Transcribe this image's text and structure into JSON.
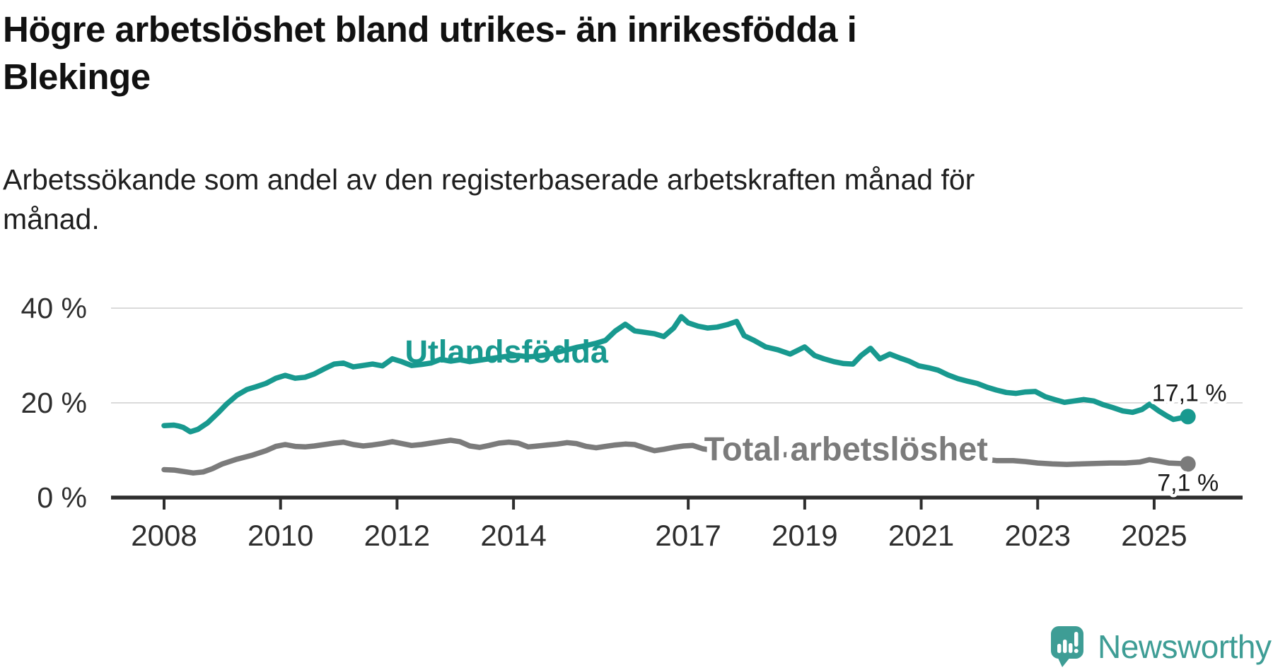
{
  "title": {
    "lines": [
      "Högre arbetslöshet bland utrikes- än inrikesfödda i",
      "Blekinge"
    ]
  },
  "subtitle": {
    "lines": [
      "Arbetssökande som andel av den registerbaserade arbetskraften månad för",
      "månad."
    ]
  },
  "logo": {
    "text": "Newsworthy",
    "icon": "newsworthy-chart-bubble-icon",
    "color": "#3e9d95"
  },
  "colors": {
    "foreign_born_line": "#18998f",
    "total_line": "#7b7b7b",
    "axis": "#2e2e2e",
    "gridline": "#dadada",
    "value_label": "#1a1a1a",
    "background": "#ffffff"
  },
  "chart_data": {
    "type": "line",
    "title": "Högre arbetslöshet bland utrikes- än inrikesfödda i Blekinge",
    "subtitle": "Arbetssökande som andel av den registerbaserade arbetskraften månad för månad.",
    "xlabel": "",
    "ylabel": "",
    "xlim": [
      2008,
      2026.5
    ],
    "ylim": [
      0,
      42
    ],
    "grid": "horizontal",
    "legend_position": "inline-labels",
    "x_ticks": [
      2008,
      2010,
      2012,
      2014,
      2017,
      2019,
      2021,
      2023,
      2025
    ],
    "y_ticks": [
      {
        "value": 0,
        "label": "0 %"
      },
      {
        "value": 20,
        "label": "20 %"
      },
      {
        "value": 40,
        "label": "40 %"
      }
    ],
    "series": [
      {
        "name": "Utlandsfödda",
        "color": "#18998f",
        "end_value": 17.1,
        "end_label": "17,1 %",
        "end_label_offset": [
          2,
          -22
        ],
        "label_anchor": [
          2013.88,
          30.8
        ],
        "label_size": 45,
        "label_halo": false,
        "points": [
          [
            2008.0,
            15.2
          ],
          [
            2008.17,
            15.3
          ],
          [
            2008.25,
            15.1
          ],
          [
            2008.33,
            14.8
          ],
          [
            2008.45,
            13.9
          ],
          [
            2008.58,
            14.4
          ],
          [
            2008.75,
            15.8
          ],
          [
            2008.92,
            17.8
          ],
          [
            2009.08,
            19.8
          ],
          [
            2009.25,
            21.6
          ],
          [
            2009.42,
            22.8
          ],
          [
            2009.58,
            23.4
          ],
          [
            2009.75,
            24.1
          ],
          [
            2009.92,
            25.2
          ],
          [
            2010.08,
            25.8
          ],
          [
            2010.25,
            25.2
          ],
          [
            2010.42,
            25.4
          ],
          [
            2010.58,
            26.1
          ],
          [
            2010.75,
            27.2
          ],
          [
            2010.92,
            28.2
          ],
          [
            2011.08,
            28.4
          ],
          [
            2011.25,
            27.6
          ],
          [
            2011.42,
            27.9
          ],
          [
            2011.58,
            28.2
          ],
          [
            2011.75,
            27.8
          ],
          [
            2011.92,
            29.3
          ],
          [
            2012.08,
            28.7
          ],
          [
            2012.25,
            27.9
          ],
          [
            2012.42,
            28.1
          ],
          [
            2012.58,
            28.4
          ],
          [
            2012.75,
            29.2
          ],
          [
            2012.92,
            28.8
          ],
          [
            2013.08,
            29.1
          ],
          [
            2013.25,
            28.7
          ],
          [
            2013.42,
            29.0
          ],
          [
            2013.58,
            29.3
          ],
          [
            2013.75,
            29.6
          ],
          [
            2013.92,
            29.9
          ],
          [
            2014.08,
            30.0
          ],
          [
            2014.25,
            29.7
          ],
          [
            2014.42,
            29.9
          ],
          [
            2014.58,
            30.2
          ],
          [
            2014.75,
            30.7
          ],
          [
            2014.92,
            31.2
          ],
          [
            2015.08,
            31.7
          ],
          [
            2015.25,
            32.1
          ],
          [
            2015.42,
            32.6
          ],
          [
            2015.58,
            33.2
          ],
          [
            2015.75,
            35.2
          ],
          [
            2015.92,
            36.6
          ],
          [
            2016.08,
            35.2
          ],
          [
            2016.25,
            34.9
          ],
          [
            2016.42,
            34.6
          ],
          [
            2016.58,
            34.0
          ],
          [
            2016.75,
            35.8
          ],
          [
            2016.88,
            38.2
          ],
          [
            2017.0,
            36.9
          ],
          [
            2017.17,
            36.2
          ],
          [
            2017.33,
            35.8
          ],
          [
            2017.5,
            36.0
          ],
          [
            2017.67,
            36.5
          ],
          [
            2017.83,
            37.2
          ],
          [
            2017.96,
            34.2
          ],
          [
            2018.13,
            33.2
          ],
          [
            2018.33,
            31.8
          ],
          [
            2018.54,
            31.2
          ],
          [
            2018.75,
            30.3
          ],
          [
            2019.0,
            31.8
          ],
          [
            2019.17,
            30.0
          ],
          [
            2019.33,
            29.3
          ],
          [
            2019.5,
            28.7
          ],
          [
            2019.67,
            28.3
          ],
          [
            2019.83,
            28.2
          ],
          [
            2019.97,
            30.0
          ],
          [
            2020.13,
            31.5
          ],
          [
            2020.29,
            29.3
          ],
          [
            2020.46,
            30.3
          ],
          [
            2020.63,
            29.5
          ],
          [
            2020.79,
            28.8
          ],
          [
            2020.96,
            27.8
          ],
          [
            2021.13,
            27.4
          ],
          [
            2021.29,
            26.9
          ],
          [
            2021.46,
            25.9
          ],
          [
            2021.63,
            25.1
          ],
          [
            2021.79,
            24.6
          ],
          [
            2021.96,
            24.1
          ],
          [
            2022.13,
            23.3
          ],
          [
            2022.29,
            22.7
          ],
          [
            2022.46,
            22.2
          ],
          [
            2022.63,
            22.0
          ],
          [
            2022.79,
            22.3
          ],
          [
            2022.96,
            22.4
          ],
          [
            2023.13,
            21.3
          ],
          [
            2023.29,
            20.7
          ],
          [
            2023.46,
            20.1
          ],
          [
            2023.63,
            20.4
          ],
          [
            2023.79,
            20.7
          ],
          [
            2023.96,
            20.4
          ],
          [
            2024.13,
            19.6
          ],
          [
            2024.29,
            19.0
          ],
          [
            2024.46,
            18.3
          ],
          [
            2024.63,
            18.0
          ],
          [
            2024.79,
            18.6
          ],
          [
            2024.92,
            19.7
          ],
          [
            2025.08,
            18.3
          ],
          [
            2025.21,
            17.3
          ],
          [
            2025.33,
            16.5
          ],
          [
            2025.46,
            16.8
          ],
          [
            2025.58,
            17.1
          ]
        ]
      },
      {
        "name": "Total arbetslöshet",
        "color": "#7b7b7b",
        "end_value": 7.1,
        "end_label": "7,1 %",
        "end_label_offset": [
          0,
          38
        ],
        "label_anchor": [
          2019.71,
          10.3
        ],
        "label_size": 47,
        "label_halo": true,
        "points": [
          [
            2008.0,
            5.9
          ],
          [
            2008.17,
            5.8
          ],
          [
            2008.33,
            5.5
          ],
          [
            2008.5,
            5.2
          ],
          [
            2008.67,
            5.4
          ],
          [
            2008.83,
            6.1
          ],
          [
            2009.0,
            7.1
          ],
          [
            2009.25,
            8.1
          ],
          [
            2009.5,
            8.9
          ],
          [
            2009.75,
            9.9
          ],
          [
            2009.92,
            10.8
          ],
          [
            2010.08,
            11.2
          ],
          [
            2010.25,
            10.8
          ],
          [
            2010.42,
            10.7
          ],
          [
            2010.58,
            10.9
          ],
          [
            2010.75,
            11.2
          ],
          [
            2010.92,
            11.5
          ],
          [
            2011.08,
            11.7
          ],
          [
            2011.25,
            11.2
          ],
          [
            2011.42,
            10.9
          ],
          [
            2011.58,
            11.1
          ],
          [
            2011.75,
            11.4
          ],
          [
            2011.92,
            11.8
          ],
          [
            2012.08,
            11.4
          ],
          [
            2012.25,
            11.0
          ],
          [
            2012.42,
            11.2
          ],
          [
            2012.58,
            11.5
          ],
          [
            2012.75,
            11.8
          ],
          [
            2012.92,
            12.1
          ],
          [
            2013.08,
            11.8
          ],
          [
            2013.25,
            10.9
          ],
          [
            2013.42,
            10.6
          ],
          [
            2013.58,
            11.0
          ],
          [
            2013.75,
            11.5
          ],
          [
            2013.92,
            11.7
          ],
          [
            2014.08,
            11.5
          ],
          [
            2014.25,
            10.7
          ],
          [
            2014.42,
            10.9
          ],
          [
            2014.58,
            11.1
          ],
          [
            2014.75,
            11.3
          ],
          [
            2014.92,
            11.6
          ],
          [
            2015.08,
            11.4
          ],
          [
            2015.25,
            10.8
          ],
          [
            2015.42,
            10.5
          ],
          [
            2015.58,
            10.8
          ],
          [
            2015.75,
            11.1
          ],
          [
            2015.92,
            11.3
          ],
          [
            2016.08,
            11.2
          ],
          [
            2016.25,
            10.5
          ],
          [
            2016.42,
            9.9
          ],
          [
            2016.58,
            10.2
          ],
          [
            2016.75,
            10.6
          ],
          [
            2016.92,
            10.9
          ],
          [
            2017.08,
            11.0
          ],
          [
            2017.25,
            10.3
          ],
          [
            2017.42,
            10.0
          ],
          [
            2017.58,
            9.9
          ],
          [
            2017.75,
            9.8
          ],
          [
            2017.92,
            9.7
          ],
          [
            2018.25,
            9.3
          ],
          [
            2018.58,
            9.0
          ],
          [
            2018.92,
            9.2
          ],
          [
            2019.25,
            8.9
          ],
          [
            2019.58,
            8.7
          ],
          [
            2019.92,
            9.2
          ],
          [
            2020.25,
            10.2
          ],
          [
            2020.46,
            10.5
          ],
          [
            2020.75,
            10.1
          ],
          [
            2021.08,
            9.7
          ],
          [
            2021.42,
            9.2
          ],
          [
            2021.75,
            8.7
          ],
          [
            2022.08,
            8.1
          ],
          [
            2022.29,
            7.8
          ],
          [
            2022.58,
            7.8
          ],
          [
            2022.79,
            7.6
          ],
          [
            2023.0,
            7.3
          ],
          [
            2023.25,
            7.1
          ],
          [
            2023.5,
            7.0
          ],
          [
            2023.75,
            7.1
          ],
          [
            2024.0,
            7.2
          ],
          [
            2024.25,
            7.3
          ],
          [
            2024.5,
            7.3
          ],
          [
            2024.75,
            7.5
          ],
          [
            2024.92,
            8.0
          ],
          [
            2025.08,
            7.7
          ],
          [
            2025.25,
            7.3
          ],
          [
            2025.42,
            7.2
          ],
          [
            2025.58,
            7.1
          ]
        ]
      }
    ]
  }
}
